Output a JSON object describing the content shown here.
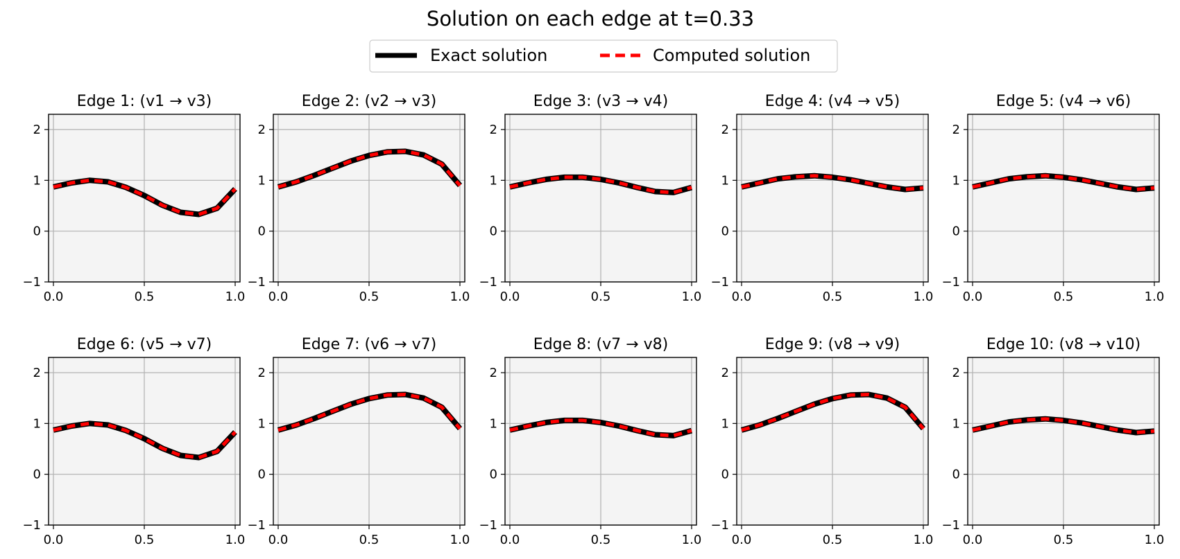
{
  "chart_data": {
    "type": "line",
    "title": "Solution on each edge at t=0.33",
    "legend": {
      "location": "top-center",
      "entries": [
        {
          "label": "Exact solution",
          "color": "#000000",
          "style": "solid"
        },
        {
          "label": "Computed solution",
          "color": "#ff0000",
          "style": "dashed"
        }
      ]
    },
    "xlim": [
      0,
      1
    ],
    "ylim": [
      -1,
      2.3
    ],
    "xticks": [
      0.0,
      0.5,
      1.0
    ],
    "yticks": [
      -1,
      0,
      1,
      2
    ],
    "xtick_labels": [
      "0.0",
      "0.5",
      "1.0"
    ],
    "ytick_labels": [
      "−1",
      "0",
      "1",
      "2"
    ],
    "grid": true,
    "panel_background": "#f4f4f4",
    "x": [
      0.0,
      0.1,
      0.2,
      0.3,
      0.4,
      0.5,
      0.6,
      0.7,
      0.8,
      0.9,
      1.0
    ],
    "panels": [
      {
        "title": "Edge 1: (v1 → v3)",
        "exact": [
          0.87,
          0.95,
          1.0,
          0.97,
          0.86,
          0.7,
          0.51,
          0.37,
          0.33,
          0.45,
          0.83
        ],
        "computed": [
          0.87,
          0.95,
          1.0,
          0.97,
          0.86,
          0.7,
          0.51,
          0.37,
          0.33,
          0.45,
          0.83
        ]
      },
      {
        "title": "Edge 2: (v2 → v3)",
        "exact": [
          0.87,
          0.97,
          1.1,
          1.24,
          1.38,
          1.49,
          1.56,
          1.57,
          1.5,
          1.32,
          0.9
        ],
        "computed": [
          0.87,
          0.97,
          1.1,
          1.24,
          1.38,
          1.49,
          1.56,
          1.57,
          1.5,
          1.32,
          0.9
        ]
      },
      {
        "title": "Edge 3: (v3 → v4)",
        "exact": [
          0.87,
          0.95,
          1.02,
          1.06,
          1.06,
          1.02,
          0.95,
          0.86,
          0.78,
          0.76,
          0.86
        ],
        "computed": [
          0.87,
          0.95,
          1.02,
          1.06,
          1.06,
          1.02,
          0.95,
          0.86,
          0.78,
          0.76,
          0.86
        ]
      },
      {
        "title": "Edge 4: (v4 → v5)",
        "exact": [
          0.87,
          0.95,
          1.03,
          1.07,
          1.09,
          1.06,
          1.01,
          0.94,
          0.87,
          0.82,
          0.85
        ],
        "computed": [
          0.87,
          0.95,
          1.03,
          1.07,
          1.09,
          1.06,
          1.01,
          0.94,
          0.87,
          0.82,
          0.85
        ]
      },
      {
        "title": "Edge 5: (v4 → v6)",
        "exact": [
          0.87,
          0.95,
          1.03,
          1.07,
          1.09,
          1.06,
          1.01,
          0.94,
          0.87,
          0.82,
          0.85
        ],
        "computed": [
          0.87,
          0.95,
          1.03,
          1.07,
          1.09,
          1.06,
          1.01,
          0.94,
          0.87,
          0.82,
          0.85
        ]
      },
      {
        "title": "Edge 6: (v5 → v7)",
        "exact": [
          0.87,
          0.95,
          1.0,
          0.97,
          0.86,
          0.7,
          0.51,
          0.37,
          0.33,
          0.45,
          0.83
        ],
        "computed": [
          0.87,
          0.95,
          1.0,
          0.97,
          0.86,
          0.7,
          0.51,
          0.37,
          0.33,
          0.45,
          0.83
        ]
      },
      {
        "title": "Edge 7: (v6 → v7)",
        "exact": [
          0.87,
          0.97,
          1.1,
          1.24,
          1.38,
          1.49,
          1.56,
          1.57,
          1.5,
          1.32,
          0.9
        ],
        "computed": [
          0.87,
          0.97,
          1.1,
          1.24,
          1.38,
          1.49,
          1.56,
          1.57,
          1.5,
          1.32,
          0.9
        ]
      },
      {
        "title": "Edge 8: (v7 → v8)",
        "exact": [
          0.87,
          0.95,
          1.02,
          1.06,
          1.06,
          1.02,
          0.95,
          0.86,
          0.78,
          0.76,
          0.86
        ],
        "computed": [
          0.87,
          0.95,
          1.02,
          1.06,
          1.06,
          1.02,
          0.95,
          0.86,
          0.78,
          0.76,
          0.86
        ]
      },
      {
        "title": "Edge 9: (v8 → v9)",
        "exact": [
          0.87,
          0.97,
          1.1,
          1.24,
          1.38,
          1.49,
          1.56,
          1.57,
          1.5,
          1.32,
          0.9
        ],
        "computed": [
          0.87,
          0.97,
          1.1,
          1.24,
          1.38,
          1.49,
          1.56,
          1.57,
          1.5,
          1.32,
          0.9
        ]
      },
      {
        "title": "Edge 10: (v8 → v10)",
        "exact": [
          0.87,
          0.95,
          1.03,
          1.07,
          1.09,
          1.06,
          1.01,
          0.94,
          0.87,
          0.82,
          0.85
        ],
        "computed": [
          0.87,
          0.95,
          1.03,
          1.07,
          1.09,
          1.06,
          1.01,
          0.94,
          0.87,
          0.82,
          0.85
        ]
      }
    ]
  }
}
